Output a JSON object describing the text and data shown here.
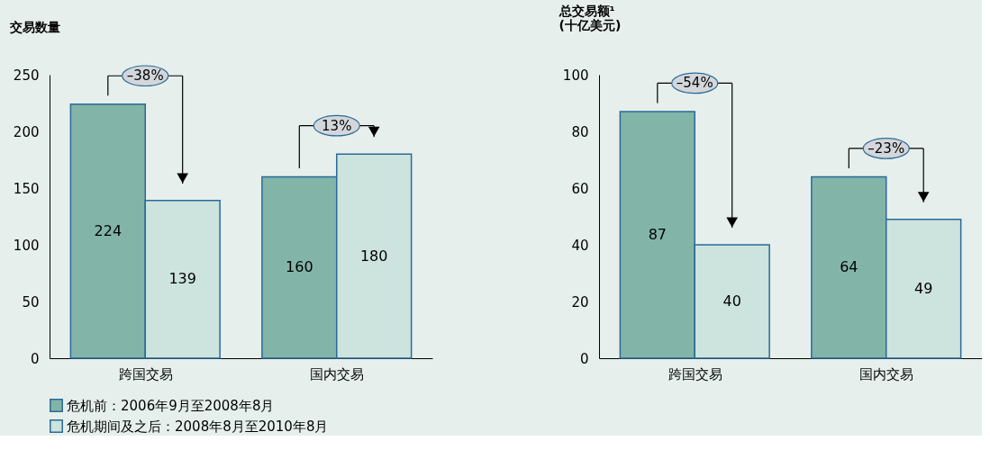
{
  "chart_data": [
    {
      "type": "bar",
      "ylabel": "交易数量",
      "categories": [
        "跨国交易",
        "国内交易"
      ],
      "series": [
        {
          "name": "危机前：2006年9月至2008年8月",
          "color": "#82b5a8",
          "values": [
            224,
            160
          ]
        },
        {
          "name": "危机期间及之后：2008年8月至2010年8月",
          "color": "#cde3de",
          "values": [
            139,
            180
          ]
        }
      ],
      "ylim": [
        0,
        250
      ],
      "yticks": [
        0,
        50,
        100,
        150,
        200,
        250
      ],
      "data_labels": true,
      "annotations": [
        "–38%",
        "13%"
      ],
      "legend": "bottom left",
      "grid": false
    },
    {
      "type": "bar",
      "ylabel": "总交易额¹\n(十亿美元)",
      "categories": [
        "跨国交易",
        "国内交易"
      ],
      "series": [
        {
          "color": "#82b5a8",
          "values": [
            87,
            64
          ]
        },
        {
          "color": "#cde3de",
          "values": [
            40,
            49
          ]
        }
      ],
      "ylim": [
        0,
        100
      ],
      "yticks": [
        0,
        20,
        40,
        60,
        80,
        100
      ],
      "data_labels": true,
      "annotations": [
        "–54%",
        "–23%"
      ],
      "grid": false
    }
  ]
}
